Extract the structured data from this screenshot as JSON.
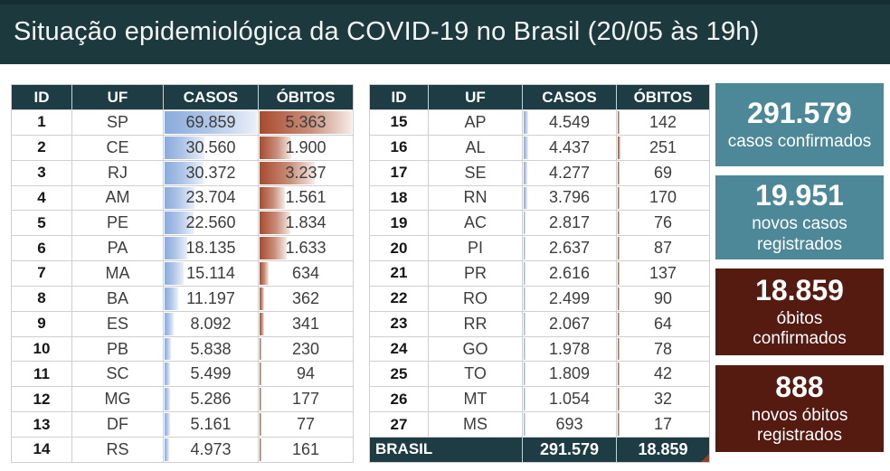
{
  "title": "Situação epidemiológica da COVID-19 no Brasil (20/05 às 19h)",
  "columns": [
    "ID",
    "UF",
    "CASOS",
    "ÓBITOS"
  ],
  "total_row": {
    "label": "BRASIL",
    "casos": "291.579",
    "obitos": "18.859"
  },
  "cards": [
    {
      "value": "291.579",
      "label": "casos confirmados",
      "bg": "#4d8899"
    },
    {
      "value": "19.951",
      "label": "novos casos\nregistrados",
      "bg": "#4d8899"
    },
    {
      "value": "18.859",
      "label": "óbitos\nconfirmados",
      "bg": "#551a10"
    },
    {
      "value": "888",
      "label": "novos óbitos\nregistrados",
      "bg": "#551a10"
    }
  ],
  "colors": {
    "banner": "#1c393e",
    "table_header": "#1e3c43",
    "casos_bar": "#8aabdb",
    "obitos_bar": "#aa4a2e",
    "teal_card": "#4d8899",
    "maroon_card": "#551a10"
  },
  "chart_data": {
    "type": "table",
    "title": "Situação epidemiológica da COVID-19 no Brasil (20/05 às 19h)",
    "columns": [
      "ID",
      "UF",
      "CASOS",
      "ÓBITOS"
    ],
    "left_table_row_count": 14,
    "rows": [
      [
        1,
        "SP",
        69859,
        5363
      ],
      [
        2,
        "CE",
        30560,
        1900
      ],
      [
        3,
        "RJ",
        30372,
        3237
      ],
      [
        4,
        "AM",
        23704,
        1561
      ],
      [
        5,
        "PE",
        22560,
        1834
      ],
      [
        6,
        "PA",
        18135,
        1633
      ],
      [
        7,
        "MA",
        15114,
        634
      ],
      [
        8,
        "BA",
        11197,
        362
      ],
      [
        9,
        "ES",
        8092,
        341
      ],
      [
        10,
        "PB",
        5838,
        230
      ],
      [
        11,
        "SC",
        5499,
        94
      ],
      [
        12,
        "MG",
        5286,
        177
      ],
      [
        13,
        "DF",
        5161,
        77
      ],
      [
        14,
        "RS",
        4973,
        161
      ],
      [
        15,
        "AP",
        4549,
        142
      ],
      [
        16,
        "AL",
        4437,
        251
      ],
      [
        17,
        "SE",
        4277,
        69
      ],
      [
        18,
        "RN",
        3796,
        170
      ],
      [
        19,
        "AC",
        2817,
        76
      ],
      [
        20,
        "PI",
        2637,
        87
      ],
      [
        21,
        "PR",
        2616,
        137
      ],
      [
        22,
        "RO",
        2499,
        90
      ],
      [
        23,
        "RR",
        2067,
        64
      ],
      [
        24,
        "GO",
        1978,
        78
      ],
      [
        25,
        "TO",
        1809,
        42
      ],
      [
        26,
        "MT",
        1054,
        32
      ],
      [
        27,
        "MS",
        693,
        17
      ]
    ],
    "total": {
      "label": "BRASIL",
      "casos": 291579,
      "obitos": 18859
    },
    "bars": {
      "casos_max": 69859,
      "obitos_max": 5363,
      "style": "gradient-data-bars"
    },
    "summary": [
      {
        "value": 291579,
        "label": "casos confirmados"
      },
      {
        "value": 19951,
        "label": "novos casos registrados"
      },
      {
        "value": 18859,
        "label": "óbitos confirmados"
      },
      {
        "value": 888,
        "label": "novos óbitos registrados"
      }
    ]
  }
}
